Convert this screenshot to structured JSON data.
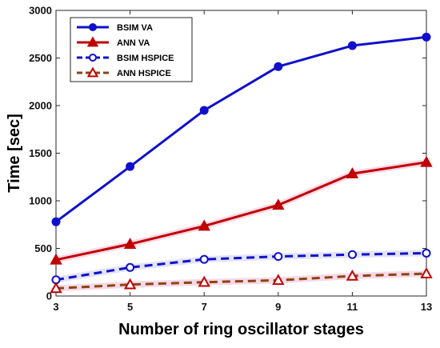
{
  "chart_data": {
    "type": "line",
    "title": "",
    "xlabel": "Number of ring oscillator stages",
    "ylabel": "Time [sec]",
    "x": [
      3,
      5,
      7,
      9,
      11,
      13
    ],
    "xlim": [
      3,
      13
    ],
    "ylim": [
      0,
      3000
    ],
    "xticks": [
      "3",
      "5",
      "7",
      "9",
      "11",
      "13"
    ],
    "yticks": [
      "0",
      "500",
      "1000",
      "1500",
      "2000",
      "2500",
      "3000"
    ],
    "grid": false,
    "legend_position": "top-left",
    "series": [
      {
        "name": "BSIM VA",
        "values": [
          780,
          1360,
          1950,
          2410,
          2630,
          2720
        ],
        "color": "#1010cc",
        "dash": "solid",
        "marker": "circle",
        "filled": true
      },
      {
        "name": "ANN VA",
        "values": [
          380,
          545,
          735,
          955,
          1285,
          1405
        ],
        "color": "#c00000",
        "dash": "solid",
        "marker": "triangle",
        "filled": true
      },
      {
        "name": "BSIM HSPICE",
        "values": [
          170,
          300,
          385,
          415,
          435,
          450
        ],
        "color": "#1010cc",
        "dash": "dashed",
        "marker": "circle",
        "filled": false
      },
      {
        "name": "ANN HSPICE",
        "values": [
          80,
          120,
          145,
          165,
          210,
          235
        ],
        "color": "#8b4513",
        "dash": "dashed",
        "marker": "triangle",
        "filled": false,
        "marker_color": "#c00000"
      }
    ]
  }
}
